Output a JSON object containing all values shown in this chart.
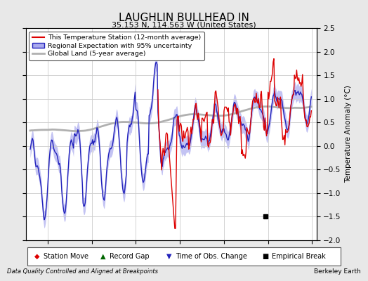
{
  "title": "LAUGHLIN BULLHEAD IN",
  "subtitle": "35.153 N, 114.563 W (United States)",
  "ylabel": "Temperature Anomaly (°C)",
  "xlabel_left": "Data Quality Controlled and Aligned at Breakpoints",
  "xlabel_right": "Berkeley Earth",
  "ylim": [
    -2.0,
    2.5
  ],
  "xlim": [
    1982.5,
    2015.5
  ],
  "xticks": [
    1985,
    1990,
    1995,
    2000,
    2005,
    2010,
    2015
  ],
  "yticks": [
    -2,
    -1.5,
    -1,
    -0.5,
    0,
    0.5,
    1,
    1.5,
    2,
    2.5
  ],
  "background_color": "#e8e8e8",
  "plot_background": "#ffffff",
  "station_color": "#dd0000",
  "regional_color": "#2222bb",
  "regional_fill_color": "#aaaaee",
  "global_color": "#b0b0b0",
  "legend_items": [
    "This Temperature Station (12-month average)",
    "Regional Expectation with 95% uncertainty",
    "Global Land (5-year average)"
  ],
  "marker_legend": [
    {
      "label": "Station Move",
      "color": "#dd0000",
      "marker": "D"
    },
    {
      "label": "Record Gap",
      "color": "#006600",
      "marker": "^"
    },
    {
      "label": "Time of Obs. Change",
      "color": "#2222bb",
      "marker": "v"
    },
    {
      "label": "Empirical Break",
      "color": "#000000",
      "marker": "s"
    }
  ],
  "empirical_break_x": 2009.7,
  "empirical_break_y": -1.5
}
